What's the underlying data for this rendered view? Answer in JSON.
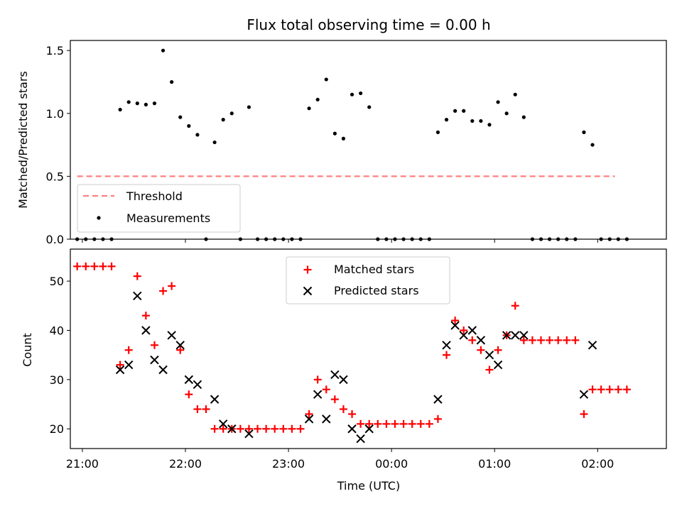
{
  "chart_data": [
    {
      "type": "scatter",
      "title": "Flux total observing time = 0.00 h",
      "ylabel": "Matched/Predicted stars",
      "xlabel": "",
      "ylim": [
        0,
        1.58
      ],
      "xlim": [
        "20:53",
        "02:40"
      ],
      "yticks": [
        "0.0",
        "0.5",
        "1.0",
        "1.5"
      ],
      "x_tick_values": [
        "21:00",
        "22:00",
        "23:00",
        "00:00",
        "01:00",
        "02:00"
      ],
      "legend_position": "lower-left",
      "threshold": {
        "name": "Threshold",
        "value": 0.5,
        "x_start": "20:57",
        "x_end": "02:10",
        "color": "#ff7f7f"
      },
      "series": [
        {
          "name": "Measurements",
          "color": "#000000",
          "points": [
            [
              "20:57",
              0
            ],
            [
              "21:02",
              0
            ],
            [
              "21:07",
              0
            ],
            [
              "21:12",
              0
            ],
            [
              "21:17",
              0
            ],
            [
              "21:22",
              1.03
            ],
            [
              "21:27",
              1.09
            ],
            [
              "21:32",
              1.08
            ],
            [
              "21:37",
              1.07
            ],
            [
              "21:42",
              1.08
            ],
            [
              "21:47",
              1.5
            ],
            [
              "21:52",
              1.25
            ],
            [
              "21:57",
              0.97
            ],
            [
              "22:02",
              0.9
            ],
            [
              "22:07",
              0.83
            ],
            [
              "22:12",
              0
            ],
            [
              "22:17",
              0.77
            ],
            [
              "22:22",
              0.95
            ],
            [
              "22:27",
              1.0
            ],
            [
              "22:32",
              0
            ],
            [
              "22:37",
              1.05
            ],
            [
              "22:42",
              0
            ],
            [
              "22:47",
              0
            ],
            [
              "22:52",
              0
            ],
            [
              "22:57",
              0
            ],
            [
              "23:02",
              0
            ],
            [
              "23:07",
              0
            ],
            [
              "23:12",
              1.04
            ],
            [
              "23:17",
              1.11
            ],
            [
              "23:22",
              1.27
            ],
            [
              "23:27",
              0.84
            ],
            [
              "23:32",
              0.8
            ],
            [
              "23:37",
              1.15
            ],
            [
              "23:42",
              1.16
            ],
            [
              "23:47",
              1.05
            ],
            [
              "23:52",
              0
            ],
            [
              "23:57",
              0
            ],
            [
              "00:02",
              0
            ],
            [
              "00:07",
              0
            ],
            [
              "00:12",
              0
            ],
            [
              "00:17",
              0
            ],
            [
              "00:22",
              0
            ],
            [
              "00:27",
              0.85
            ],
            [
              "00:32",
              0.95
            ],
            [
              "00:37",
              1.02
            ],
            [
              "00:42",
              1.02
            ],
            [
              "00:47",
              0.94
            ],
            [
              "00:52",
              0.94
            ],
            [
              "00:57",
              0.91
            ],
            [
              "01:02",
              1.09
            ],
            [
              "01:07",
              1.0
            ],
            [
              "01:12",
              1.15
            ],
            [
              "01:17",
              0.97
            ],
            [
              "01:22",
              0
            ],
            [
              "01:27",
              0
            ],
            [
              "01:32",
              0
            ],
            [
              "01:37",
              0
            ],
            [
              "01:42",
              0
            ],
            [
              "01:47",
              0
            ],
            [
              "01:52",
              0.85
            ],
            [
              "01:57",
              0.75
            ],
            [
              "02:02",
              0
            ],
            [
              "02:07",
              0
            ],
            [
              "02:12",
              0
            ],
            [
              "02:17",
              0
            ]
          ]
        }
      ]
    },
    {
      "type": "scatter",
      "title": "",
      "ylabel": "Count",
      "xlabel": "Time (UTC)",
      "ylim": [
        16,
        56.5
      ],
      "xlim": [
        "20:53",
        "02:40"
      ],
      "yticks": [
        "20",
        "30",
        "40",
        "50"
      ],
      "xticks": [
        "21:00",
        "22:00",
        "23:00",
        "00:00",
        "01:00",
        "02:00"
      ],
      "x_tick_values": [
        "21:00",
        "22:00",
        "23:00",
        "00:00",
        "01:00",
        "02:00"
      ],
      "legend_position": "upper-center",
      "series": [
        {
          "name": "Matched stars",
          "marker": "plus",
          "color": "#ff0000",
          "points": [
            [
              "20:57",
              53
            ],
            [
              "21:02",
              53
            ],
            [
              "21:07",
              53
            ],
            [
              "21:12",
              53
            ],
            [
              "21:17",
              53
            ],
            [
              "21:22",
              33
            ],
            [
              "21:27",
              36
            ],
            [
              "21:32",
              51
            ],
            [
              "21:37",
              43
            ],
            [
              "21:42",
              37
            ],
            [
              "21:47",
              48
            ],
            [
              "21:52",
              49
            ],
            [
              "21:57",
              36
            ],
            [
              "22:02",
              27
            ],
            [
              "22:07",
              24
            ],
            [
              "22:12",
              24
            ],
            [
              "22:17",
              20
            ],
            [
              "22:22",
              20
            ],
            [
              "22:27",
              20
            ],
            [
              "22:32",
              20
            ],
            [
              "22:37",
              20
            ],
            [
              "22:42",
              20
            ],
            [
              "22:47",
              20
            ],
            [
              "22:52",
              20
            ],
            [
              "22:57",
              20
            ],
            [
              "23:02",
              20
            ],
            [
              "23:07",
              20
            ],
            [
              "23:12",
              23
            ],
            [
              "23:17",
              30
            ],
            [
              "23:22",
              28
            ],
            [
              "23:27",
              26
            ],
            [
              "23:32",
              24
            ],
            [
              "23:37",
              23
            ],
            [
              "23:42",
              21
            ],
            [
              "23:47",
              21
            ],
            [
              "23:52",
              21
            ],
            [
              "23:57",
              21
            ],
            [
              "00:02",
              21
            ],
            [
              "00:07",
              21
            ],
            [
              "00:12",
              21
            ],
            [
              "00:17",
              21
            ],
            [
              "00:22",
              21
            ],
            [
              "00:27",
              22
            ],
            [
              "00:32",
              35
            ],
            [
              "00:37",
              42
            ],
            [
              "00:42",
              40
            ],
            [
              "00:47",
              38
            ],
            [
              "00:52",
              36
            ],
            [
              "00:57",
              32
            ],
            [
              "01:02",
              36
            ],
            [
              "01:07",
              39
            ],
            [
              "01:12",
              45
            ],
            [
              "01:17",
              38
            ],
            [
              "01:22",
              38
            ],
            [
              "01:27",
              38
            ],
            [
              "01:32",
              38
            ],
            [
              "01:37",
              38
            ],
            [
              "01:42",
              38
            ],
            [
              "01:47",
              38
            ],
            [
              "01:52",
              23
            ],
            [
              "01:57",
              28
            ],
            [
              "02:02",
              28
            ],
            [
              "02:07",
              28
            ],
            [
              "02:12",
              28
            ],
            [
              "02:17",
              28
            ]
          ]
        },
        {
          "name": "Predicted stars",
          "marker": "x",
          "color": "#000000",
          "points": [
            [
              "21:22",
              32
            ],
            [
              "21:27",
              33
            ],
            [
              "21:32",
              47
            ],
            [
              "21:37",
              40
            ],
            [
              "21:42",
              34
            ],
            [
              "21:47",
              32
            ],
            [
              "21:52",
              39
            ],
            [
              "21:57",
              37
            ],
            [
              "22:02",
              30
            ],
            [
              "22:07",
              29
            ],
            [
              "22:17",
              26
            ],
            [
              "22:22",
              21
            ],
            [
              "22:27",
              20
            ],
            [
              "22:37",
              19
            ],
            [
              "23:12",
              22
            ],
            [
              "23:17",
              27
            ],
            [
              "23:22",
              22
            ],
            [
              "23:27",
              31
            ],
            [
              "23:32",
              30
            ],
            [
              "23:37",
              20
            ],
            [
              "23:42",
              18
            ],
            [
              "23:47",
              20
            ],
            [
              "00:27",
              26
            ],
            [
              "00:32",
              37
            ],
            [
              "00:37",
              41
            ],
            [
              "00:42",
              39
            ],
            [
              "00:47",
              40
            ],
            [
              "00:52",
              38
            ],
            [
              "00:57",
              35
            ],
            [
              "01:02",
              33
            ],
            [
              "01:07",
              39
            ],
            [
              "01:12",
              39
            ],
            [
              "01:17",
              39
            ],
            [
              "01:52",
              27
            ],
            [
              "01:57",
              37
            ]
          ]
        }
      ]
    }
  ]
}
